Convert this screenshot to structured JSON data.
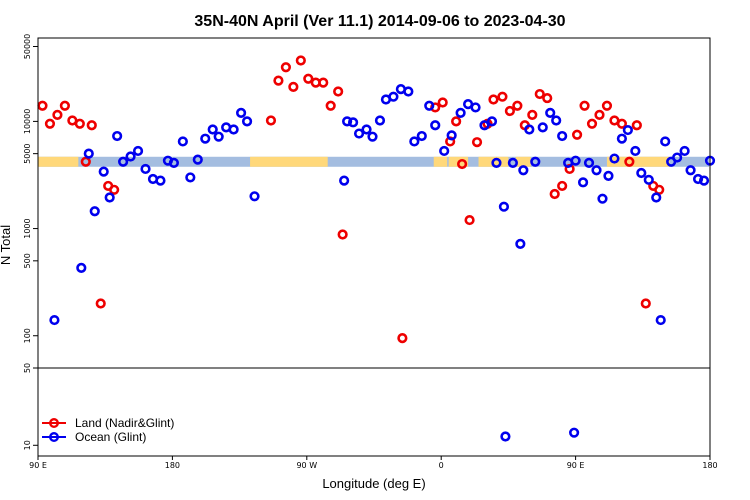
{
  "chart_data": {
    "type": "scatter",
    "title": "35N-40N April (Ver 11.1)   2014-09-06 to 2023-04-30",
    "xlabel": "Longitude (deg E)",
    "ylabel": "N Total",
    "x_ticks": [
      {
        "value": 90,
        "label": "90 E"
      },
      {
        "value": 180,
        "label": "180"
      },
      {
        "value": 270,
        "label": "90 W"
      },
      {
        "value": 360,
        "label": "0"
      },
      {
        "value": 450,
        "label": "90 E"
      },
      {
        "value": 540,
        "label": "180"
      }
    ],
    "xlim": [
      90,
      540
    ],
    "upper_panel": {
      "ylim": [
        50,
        60000
      ],
      "log_scale": true,
      "y_ticks": [
        "100",
        "500",
        "1000",
        "5000",
        "10000",
        "50000"
      ]
    },
    "lower_panel": {
      "ylim": [
        8,
        50
      ],
      "log_scale": true,
      "y_ticks": [
        "10",
        "50"
      ]
    },
    "land_sea_bar": {
      "n_total": 4200,
      "land_color": "#ffd87a",
      "ocean_color": "#a4bde0",
      "land_ranges": [
        [
          90,
          117
        ],
        [
          232,
          284
        ],
        [
          355,
          364
        ],
        [
          365,
          378
        ],
        [
          385,
          405
        ],
        [
          410,
          420
        ],
        [
          471,
          513
        ]
      ]
    },
    "series": [
      {
        "name": "Land (Nadir&Glint)",
        "color": "#ee0000",
        "points": [
          [
            93,
            14000
          ],
          [
            98,
            9500
          ],
          [
            103,
            11500
          ],
          [
            108,
            14000
          ],
          [
            113,
            10200
          ],
          [
            118,
            9500
          ],
          [
            122,
            4200
          ],
          [
            126,
            9200
          ],
          [
            132,
            200
          ],
          [
            137,
            2500
          ],
          [
            141,
            2300
          ],
          [
            246,
            10200
          ],
          [
            251,
            24000
          ],
          [
            256,
            32000
          ],
          [
            261,
            21000
          ],
          [
            266,
            37000
          ],
          [
            271,
            25000
          ],
          [
            276,
            23000
          ],
          [
            281,
            23000
          ],
          [
            286,
            14000
          ],
          [
            291,
            19000
          ],
          [
            294,
            880
          ],
          [
            334,
            95
          ],
          [
            356,
            13500
          ],
          [
            361,
            15000
          ],
          [
            366,
            6500
          ],
          [
            370,
            10000
          ],
          [
            374,
            4000
          ],
          [
            379,
            1200
          ],
          [
            384,
            6400
          ],
          [
            391,
            9500
          ],
          [
            395,
            16000
          ],
          [
            401,
            17000
          ],
          [
            406,
            12500
          ],
          [
            411,
            14000
          ],
          [
            416,
            9200
          ],
          [
            421,
            11500
          ],
          [
            426,
            18000
          ],
          [
            431,
            16500
          ],
          [
            436,
            2100
          ],
          [
            441,
            2500
          ],
          [
            446,
            3600
          ],
          [
            451,
            7500
          ],
          [
            456,
            14000
          ],
          [
            461,
            9500
          ],
          [
            466,
            11500
          ],
          [
            471,
            14000
          ],
          [
            476,
            10200
          ],
          [
            481,
            9500
          ],
          [
            486,
            4200
          ],
          [
            491,
            9200
          ],
          [
            497,
            200
          ],
          [
            502,
            2500
          ],
          [
            506,
            2300
          ]
        ]
      },
      {
        "name": "Ocean (Glint)",
        "color": "#0000ee",
        "points": [
          [
            101,
            140
          ],
          [
            119,
            430
          ],
          [
            124,
            5000
          ],
          [
            128,
            1450
          ],
          [
            134,
            3400
          ],
          [
            138,
            1950
          ],
          [
            143,
            7300
          ],
          [
            147,
            4200
          ],
          [
            152,
            4700
          ],
          [
            157,
            5300
          ],
          [
            162,
            3600
          ],
          [
            167,
            2900
          ],
          [
            172,
            2800
          ],
          [
            177,
            4300
          ],
          [
            181,
            4100
          ],
          [
            187,
            6500
          ],
          [
            192,
            3000
          ],
          [
            197,
            4400
          ],
          [
            202,
            6900
          ],
          [
            207,
            8400
          ],
          [
            211,
            7200
          ],
          [
            216,
            8800
          ],
          [
            221,
            8400
          ],
          [
            226,
            12000
          ],
          [
            230,
            10000
          ],
          [
            235,
            2000
          ],
          [
            295,
            2800
          ],
          [
            297,
            10000
          ],
          [
            301,
            9800
          ],
          [
            305,
            7700
          ],
          [
            310,
            8400
          ],
          [
            314,
            7200
          ],
          [
            319,
            10200
          ],
          [
            323,
            16000
          ],
          [
            328,
            17000
          ],
          [
            333,
            20000
          ],
          [
            338,
            19000
          ],
          [
            342,
            6500
          ],
          [
            347,
            7300
          ],
          [
            352,
            14000
          ],
          [
            356,
            9200
          ],
          [
            362,
            5300
          ],
          [
            367,
            7400
          ],
          [
            373,
            12000
          ],
          [
            378,
            14500
          ],
          [
            383,
            13500
          ],
          [
            389,
            9200
          ],
          [
            394,
            10000
          ],
          [
            397,
            4100
          ],
          [
            402,
            1600
          ],
          [
            408,
            4100
          ],
          [
            413,
            720
          ],
          [
            415,
            3500
          ],
          [
            419,
            8400
          ],
          [
            423,
            4200
          ],
          [
            428,
            8800
          ],
          [
            433,
            12000
          ],
          [
            437,
            10200
          ],
          [
            441,
            7300
          ],
          [
            445,
            4100
          ],
          [
            450,
            4300
          ],
          [
            455,
            2700
          ],
          [
            459,
            4100
          ],
          [
            464,
            3500
          ],
          [
            468,
            1900
          ],
          [
            472,
            3100
          ],
          [
            476,
            4500
          ],
          [
            481,
            6900
          ],
          [
            485,
            8300
          ],
          [
            490,
            5300
          ],
          [
            494,
            3300
          ],
          [
            499,
            2850
          ],
          [
            504,
            1950
          ],
          [
            507,
            140
          ],
          [
            510,
            6500
          ],
          [
            514,
            4200
          ],
          [
            518,
            4600
          ],
          [
            523,
            5300
          ],
          [
            527,
            3500
          ],
          [
            532,
            2900
          ],
          [
            536,
            2800
          ],
          [
            540,
            4300
          ]
        ],
        "lower_panel_points": [
          [
            403,
            12
          ],
          [
            449,
            13
          ]
        ]
      }
    ],
    "legend_placement": "bottom-left",
    "grid": false
  }
}
